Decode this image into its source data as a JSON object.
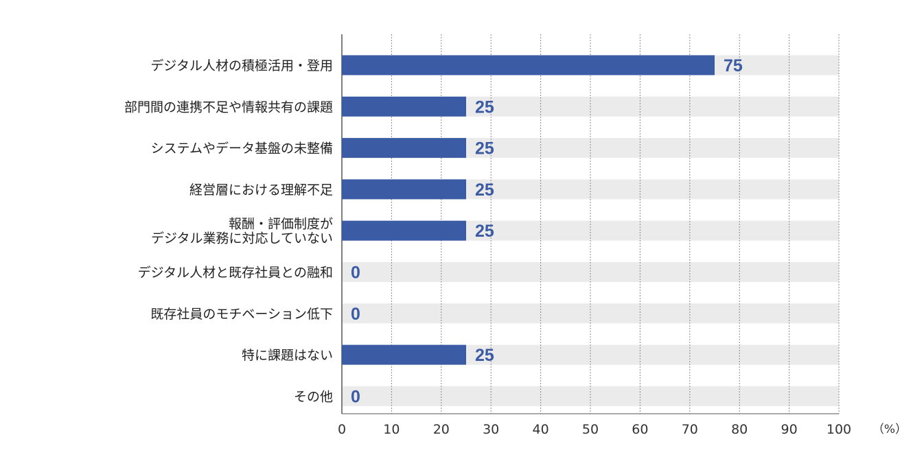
{
  "chart_data": {
    "type": "bar",
    "orientation": "horizontal",
    "categories": [
      [
        "デジタル人材の積極活用・登用"
      ],
      [
        "部門間の連携不足や情報共有の課題"
      ],
      [
        "システムやデータ基盤の未整備"
      ],
      [
        "経営層における理解不足"
      ],
      [
        "報酬・評価制度が",
        "デジタル業務に対応していない"
      ],
      [
        "デジタル人材と既存社員との融和"
      ],
      [
        "既存社員のモチベーション低下"
      ],
      [
        "特に課題はない"
      ],
      [
        "その他"
      ]
    ],
    "values": [
      75,
      25,
      25,
      25,
      25,
      0,
      0,
      25,
      0
    ],
    "xlim": [
      0,
      100
    ],
    "xticks": [
      0,
      10,
      20,
      30,
      40,
      50,
      60,
      70,
      80,
      90,
      100
    ],
    "x_unit": "（%）",
    "grid": true,
    "colors": {
      "bar": "#3b5ba5",
      "track": "#ebebeb",
      "value_text": "#3b5ba5",
      "axis": "#555555"
    }
  }
}
